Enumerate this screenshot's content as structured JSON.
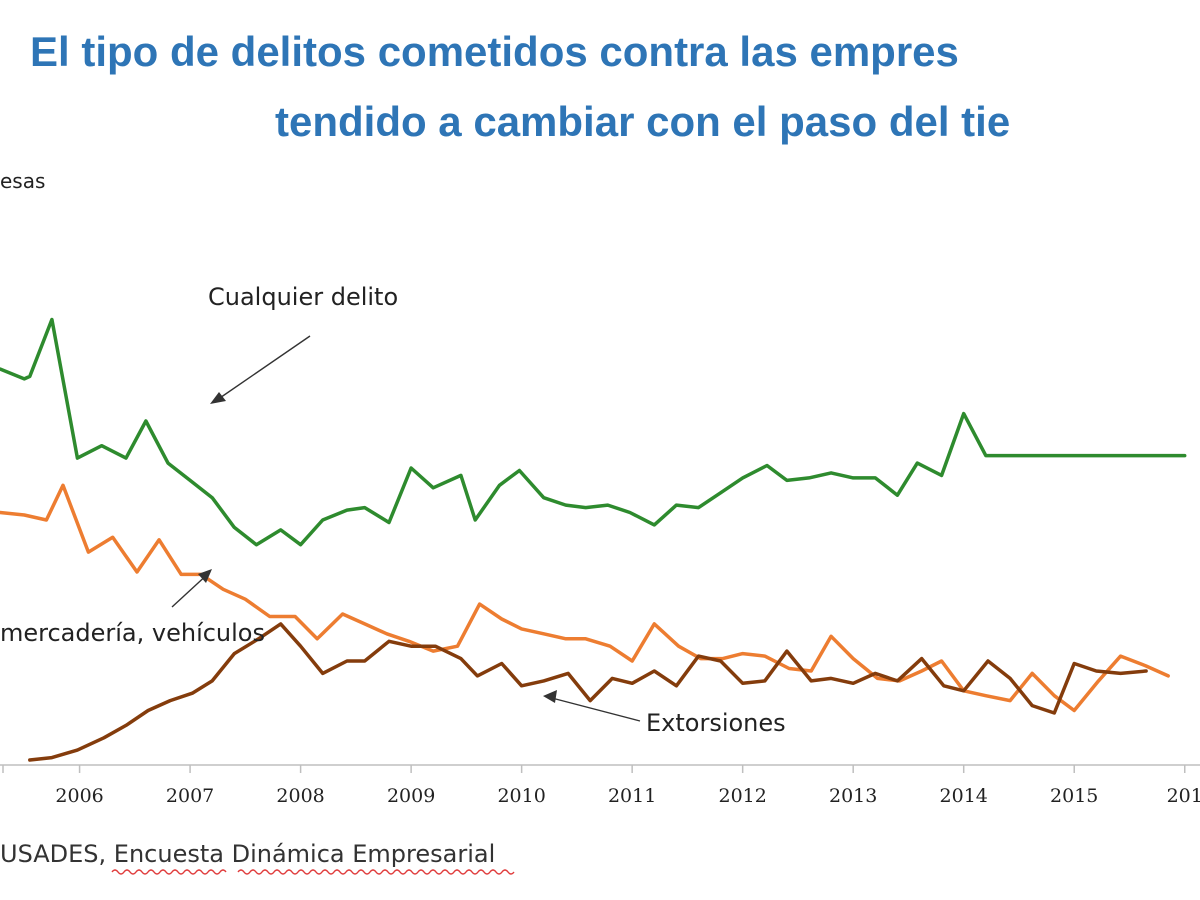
{
  "colors": {
    "title": "#2e75b6",
    "series": [
      "#2e8b2e",
      "#ed7d31",
      "#843c0c"
    ],
    "axis": "#bfbfbf",
    "arrow": "#333333"
  },
  "chart_data": {
    "type": "line",
    "title_lines": [
      "El tipo de delitos cometidos contra las empres",
      "tendido a cambiar con el paso del tie"
    ],
    "ylabel": "esas",
    "x_ticks": [
      "2006",
      "2007",
      "2008",
      "2009",
      "2010",
      "2011",
      "2012",
      "2013",
      "2014",
      "2015",
      "201"
    ],
    "xlim": [
      2005.28,
      2016.12
    ],
    "ylim": [
      0,
      100
    ],
    "series": [
      {
        "name": "Cualquier delito",
        "label": "Cualquier delito",
        "x": [
          2005.28,
          2005.5,
          2005.55,
          2005.75,
          2005.98,
          2006.2,
          2006.42,
          2006.6,
          2006.8,
          2007.0,
          2007.2,
          2007.4,
          2007.6,
          2007.82,
          2008.0,
          2008.2,
          2008.42,
          2008.58,
          2008.8,
          2009.0,
          2009.2,
          2009.45,
          2009.58,
          2009.8,
          2009.98,
          2010.2,
          2010.4,
          2010.58,
          2010.78,
          2010.98,
          2011.2,
          2011.4,
          2011.6,
          2011.8,
          2012.0,
          2012.22,
          2012.4,
          2012.6,
          2012.8,
          2013.0,
          2013.2,
          2013.4,
          2013.58,
          2013.8,
          2014.0,
          2014.2,
          2014.38,
          2014.6,
          2014.8,
          2015.0,
          2015.22,
          2015.4,
          2015.62,
          2015.85,
          2016.0
        ],
        "y": [
          80,
          78,
          78.5,
          90,
          62,
          64.5,
          62,
          69.5,
          61,
          57.5,
          54,
          48,
          44.5,
          47.5,
          44.5,
          49.5,
          51.5,
          52,
          49,
          60,
          56,
          58.5,
          49.5,
          56.5,
          59.5,
          54,
          52.5,
          52,
          52.5,
          51,
          48.5,
          52.5,
          52,
          55,
          58,
          60.5,
          57.5,
          58,
          59,
          58,
          58,
          54.5,
          61,
          58.5,
          71,
          62.5,
          62.5,
          62.5,
          62.5,
          62.5,
          62.5,
          62.5,
          62.5,
          62.5,
          62.5
        ]
      },
      {
        "name": "Robo de mercadería, vehículos",
        "label": "mercadería, vehículos",
        "x": [
          2005.28,
          2005.5,
          2005.7,
          2005.85,
          2006.08,
          2006.3,
          2006.52,
          2006.72,
          2006.92,
          2007.1,
          2007.3,
          2007.5,
          2007.72,
          2007.95,
          2008.15,
          2008.38,
          2008.58,
          2008.78,
          2008.98,
          2009.2,
          2009.42,
          2009.62,
          2009.82,
          2010.0,
          2010.2,
          2010.4,
          2010.58,
          2010.8,
          2011.0,
          2011.2,
          2011.42,
          2011.62,
          2011.82,
          2012.0,
          2012.2,
          2012.42,
          2012.62,
          2012.8,
          2013.0,
          2013.22,
          2013.42,
          2013.62,
          2013.8,
          2014.0,
          2014.2,
          2014.42,
          2014.62,
          2014.82,
          2015.0,
          2015.22,
          2015.42,
          2015.65,
          2015.85
        ],
        "y": [
          51,
          50.5,
          49.5,
          56.5,
          43,
          46,
          39,
          45.5,
          38.5,
          38.5,
          35.5,
          33.5,
          30,
          30,
          25.5,
          30.5,
          28.5,
          26.5,
          25,
          23,
          24,
          32.5,
          29.5,
          27.5,
          26.5,
          25.5,
          25.5,
          24,
          21,
          28.5,
          24,
          21.5,
          21.5,
          22.5,
          22,
          19.5,
          19,
          26,
          21.5,
          17.5,
          17,
          19,
          21,
          15,
          14,
          13,
          18.5,
          14,
          11,
          17,
          22,
          20,
          18
        ]
      },
      {
        "name": "Extorsiones",
        "label": "Extorsiones",
        "x": [
          2005.55,
          2005.75,
          2005.98,
          2006.22,
          2006.42,
          2006.62,
          2006.82,
          2007.02,
          2007.2,
          2007.4,
          2007.62,
          2007.82,
          2008.0,
          2008.2,
          2008.42,
          2008.58,
          2008.8,
          2009.0,
          2009.22,
          2009.45,
          2009.6,
          2009.82,
          2010.0,
          2010.2,
          2010.42,
          2010.62,
          2010.82,
          2011.0,
          2011.2,
          2011.4,
          2011.6,
          2011.8,
          2012.0,
          2012.2,
          2012.4,
          2012.62,
          2012.8,
          2013.0,
          2013.2,
          2013.4,
          2013.62,
          2013.82,
          2014.0,
          2014.22,
          2014.42,
          2014.62,
          2014.82,
          2015.0,
          2015.2,
          2015.42,
          2015.65
        ],
        "y": [
          1,
          1.5,
          3,
          5.5,
          8,
          11,
          13,
          14.5,
          17,
          22.5,
          25.5,
          28.5,
          24,
          18.5,
          21,
          21,
          25,
          24,
          24,
          21.5,
          18,
          20.5,
          16,
          17,
          18.5,
          13,
          17.5,
          16.5,
          19,
          16,
          22,
          21,
          16.5,
          17,
          23,
          17,
          17.5,
          16.5,
          18.5,
          17,
          21.5,
          16,
          15,
          21,
          17.5,
          12,
          10.5,
          20.5,
          19,
          18.5,
          19
        ]
      }
    ],
    "annotations": [
      {
        "text": "Cualquier delito",
        "target": "Cualquier delito"
      },
      {
        "text": "mercadería, vehículos",
        "target": "Robo de mercadería, vehículos"
      },
      {
        "text": "Extorsiones",
        "target": "Extorsiones"
      }
    ]
  },
  "source": "USADES, Encuesta Dinámica Empresarial"
}
